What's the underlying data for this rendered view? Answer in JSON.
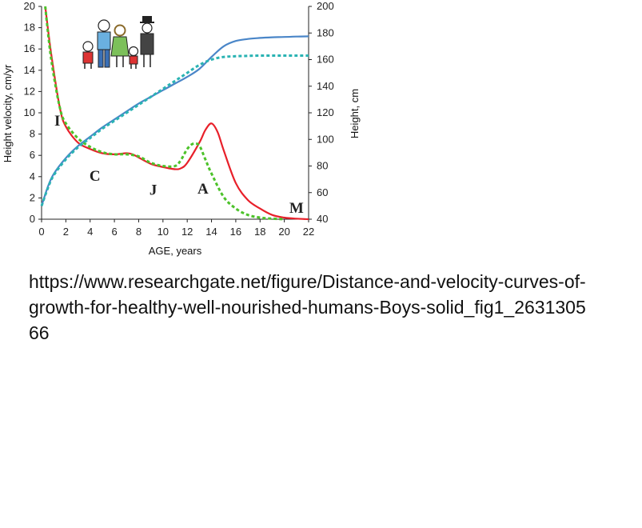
{
  "chart_data": {
    "type": "line",
    "xlabel": "AGE, years",
    "ylabel_left": "Height velocity, cm/yr",
    "ylabel_right": "Height, cm",
    "xlim": [
      0,
      22
    ],
    "ylim_left": [
      0,
      20
    ],
    "ylim_right": [
      40,
      200
    ],
    "x_ticks": [
      "0",
      "2",
      "4",
      "6",
      "8",
      "10",
      "12",
      "14",
      "16",
      "18",
      "20",
      "22"
    ],
    "y_left_ticks": [
      "0",
      "2",
      "4",
      "6",
      "8",
      "10",
      "12",
      "14",
      "16",
      "18",
      "20"
    ],
    "y_right_ticks": [
      "40",
      "60",
      "80",
      "100",
      "120",
      "140",
      "160",
      "180",
      "200"
    ],
    "grid": false,
    "colors": {
      "boys": "#e8202a",
      "girls": "#4cc22a",
      "boys_height": "#4a86c8",
      "girls_height": "#2ab3b3"
    },
    "series": [
      {
        "axis": "left",
        "style": "solid",
        "color_key": "boys",
        "x": [
          0.3,
          0.8,
          1.5,
          2,
          3,
          4,
          5,
          6,
          7,
          7.5,
          8,
          9,
          10,
          11,
          11.5,
          12,
          13,
          13.5,
          14,
          14.5,
          15,
          16,
          17,
          18,
          19,
          20,
          21,
          22
        ],
        "y": [
          20,
          15.5,
          10.5,
          8.7,
          7.2,
          6.6,
          6.2,
          6.1,
          6.2,
          6.1,
          5.8,
          5.2,
          4.9,
          4.7,
          4.8,
          5.3,
          7.2,
          8.4,
          9.0,
          8.2,
          6.5,
          3.4,
          1.8,
          1.0,
          0.4,
          0.15,
          0.05,
          0.0
        ]
      },
      {
        "axis": "left",
        "style": "dashed",
        "color_key": "girls",
        "x": [
          0.3,
          0.8,
          1.5,
          2,
          3,
          4,
          5,
          6,
          7,
          8,
          9,
          10,
          11,
          11.5,
          12,
          12.5,
          13,
          13.5,
          14,
          15,
          16,
          17,
          18,
          19,
          20
        ],
        "y": [
          20,
          15.0,
          10.5,
          9.0,
          7.6,
          6.8,
          6.3,
          6.1,
          6.1,
          5.9,
          5.3,
          5.0,
          5.0,
          5.6,
          6.6,
          7.1,
          6.9,
          5.6,
          4.3,
          2.1,
          1.0,
          0.4,
          0.15,
          0.05,
          0.0
        ]
      },
      {
        "axis": "right",
        "style": "solid",
        "color_key": "boys_height",
        "x": [
          0,
          0.5,
          1,
          2,
          3,
          4,
          5,
          6,
          7,
          8,
          9,
          10,
          11,
          12,
          13,
          14,
          15,
          16,
          17,
          18,
          19,
          20,
          21,
          22
        ],
        "y": [
          50,
          64,
          74,
          86,
          95,
          102,
          109,
          115,
          121,
          127,
          132,
          137,
          142,
          147,
          153,
          162,
          170,
          174,
          175.5,
          176.3,
          176.8,
          177,
          177.3,
          177.5
        ]
      },
      {
        "axis": "right",
        "style": "dashed",
        "color_key": "girls_height",
        "x": [
          0,
          0.5,
          1,
          2,
          3,
          4,
          5,
          6,
          7,
          8,
          9,
          10,
          11,
          12,
          13,
          14,
          15,
          16,
          17,
          18,
          19,
          20,
          21,
          22
        ],
        "y": [
          50,
          63,
          73,
          85,
          94,
          101,
          108,
          114,
          120,
          126,
          132,
          138,
          144,
          150,
          156,
          160,
          162,
          162.5,
          162.8,
          163,
          163,
          163,
          163,
          163
        ]
      }
    ],
    "annotations": [
      {
        "text": "I",
        "x": 1.3,
        "y": 8.8
      },
      {
        "text": "C",
        "x": 4.4,
        "y": 3.6
      },
      {
        "text": "J",
        "x": 9.2,
        "y": 2.3
      },
      {
        "text": "A",
        "x": 13.3,
        "y": 2.4
      },
      {
        "text": "M",
        "x": 21.0,
        "y": 0.6
      }
    ]
  },
  "caption": "https://www.researchgate.net/figure/Distance-and-velocity-curves-of-growth-for-healthy-well-nourished-humans-Boys-solid_fig1_263130566"
}
